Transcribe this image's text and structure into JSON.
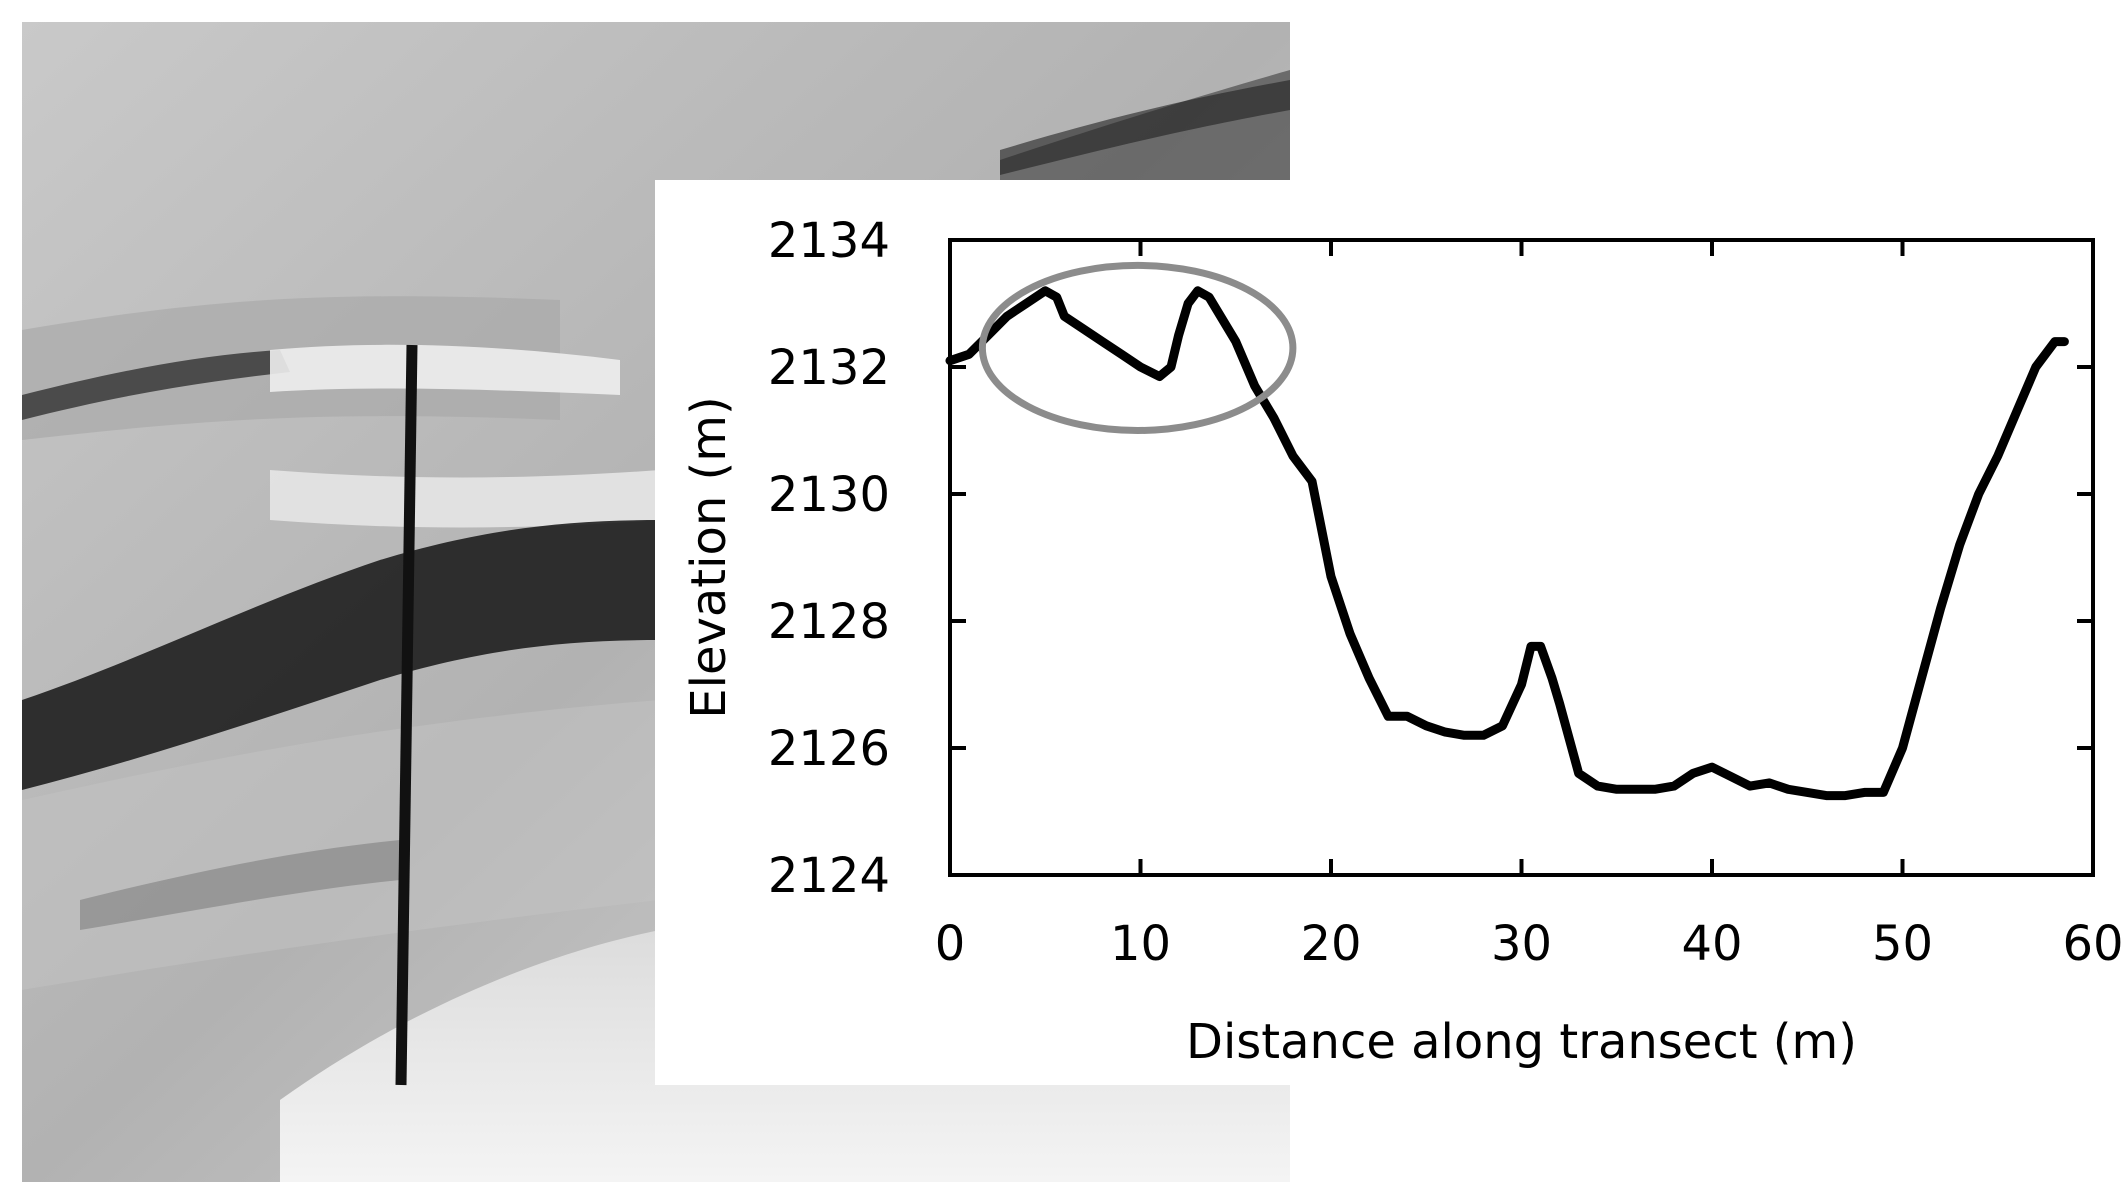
{
  "figure": {
    "hillshade": {
      "base_color": "#bdbdbd",
      "dark_band": "#1a1a1a",
      "light_area": "#f2f2f2"
    },
    "transect_line": {
      "color": "#111111"
    }
  },
  "chart_data": {
    "type": "line",
    "title": "",
    "xlabel": "Distance along transect (m)",
    "ylabel": "Elevation (m)",
    "xlim": [
      0,
      60
    ],
    "ylim": [
      2124,
      2134
    ],
    "x_ticks": [
      0,
      10,
      20,
      30,
      40,
      50,
      60
    ],
    "y_ticks": [
      2124,
      2126,
      2128,
      2130,
      2132,
      2134
    ],
    "line_color": "#000000",
    "highlight_ellipse": {
      "x_range": [
        1.7,
        18
      ],
      "y_range": [
        2131.0,
        2133.6
      ],
      "color": "#8c8c8c"
    },
    "series": [
      {
        "x": [
          0,
          1,
          2,
          3,
          4,
          5,
          5.6,
          6,
          7,
          8,
          9,
          10,
          11,
          11.6,
          12,
          12.5,
          13,
          13.6,
          14,
          15,
          16,
          17,
          18,
          19,
          20,
          21,
          22,
          23,
          24,
          25,
          26,
          27,
          28,
          29,
          30,
          30.5,
          31,
          31.6,
          32,
          33,
          34,
          35,
          36,
          37,
          38,
          39,
          40,
          41,
          42,
          43,
          44,
          45,
          46,
          47,
          48,
          49,
          50,
          51,
          52,
          53,
          54,
          55,
          56,
          57,
          58,
          58.5
        ],
        "y": [
          2132.1,
          2132.2,
          2132.5,
          2132.8,
          2133.0,
          2133.2,
          2133.1,
          2132.8,
          2132.6,
          2132.4,
          2132.2,
          2132.0,
          2131.85,
          2132.0,
          2132.5,
          2133.0,
          2133.2,
          2133.1,
          2132.9,
          2132.4,
          2131.7,
          2131.2,
          2130.6,
          2130.2,
          2128.7,
          2127.8,
          2127.1,
          2126.5,
          2126.5,
          2126.35,
          2126.25,
          2126.2,
          2126.2,
          2126.35,
          2127.0,
          2127.6,
          2127.6,
          2127.1,
          2126.7,
          2125.6,
          2125.4,
          2125.35,
          2125.35,
          2125.35,
          2125.4,
          2125.6,
          2125.7,
          2125.55,
          2125.4,
          2125.45,
          2125.35,
          2125.3,
          2125.25,
          2125.25,
          2125.3,
          2125.3,
          2126.0,
          2127.1,
          2128.2,
          2129.2,
          2130.0,
          2130.6,
          2131.3,
          2132.0,
          2132.4,
          2132.4
        ]
      }
    ]
  }
}
